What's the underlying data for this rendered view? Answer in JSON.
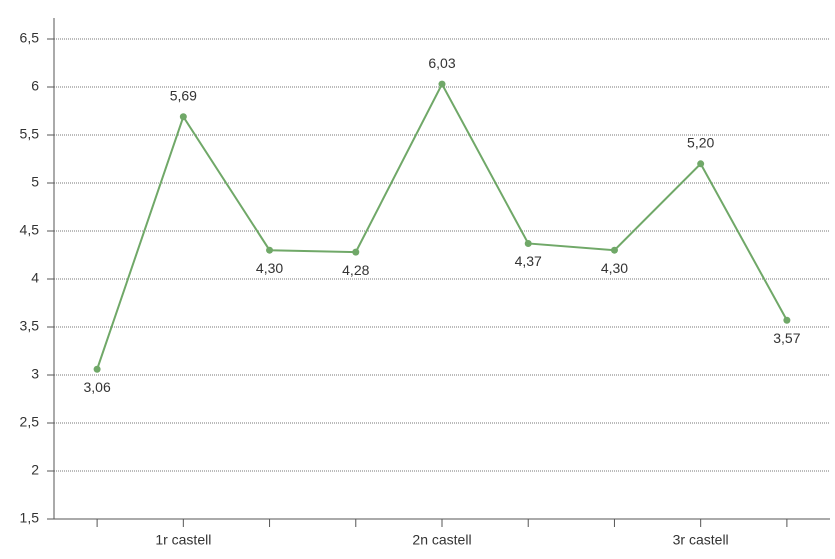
{
  "chart_data": {
    "type": "line",
    "categories": [
      null,
      "1r castell",
      null,
      null,
      "2n castell",
      null,
      null,
      "3r castell",
      null
    ],
    "series": [
      {
        "name": null,
        "color": "#70a868",
        "values": [
          3.06,
          5.69,
          4.3,
          4.28,
          6.03,
          4.37,
          4.3,
          5.2,
          3.57
        ],
        "value_labels": [
          "3,06",
          "5,69",
          "4,30",
          "4,28",
          "6,03",
          "4,37",
          "4,30",
          "5,20",
          "3,57"
        ]
      }
    ],
    "ylim": [
      1.5,
      6.5
    ],
    "yticks": [
      {
        "value": 1.5,
        "label": "1,5"
      },
      2,
      {
        "value": 2.5,
        "label": "2,5"
      },
      3,
      {
        "value": 3.5,
        "label": "3,5"
      },
      4,
      {
        "value": 4.5,
        "label": "4,5"
      },
      5,
      {
        "value": 5.5,
        "label": "5,5"
      },
      6,
      {
        "value": 6.5,
        "label": "6,5"
      }
    ],
    "grid": true
  }
}
